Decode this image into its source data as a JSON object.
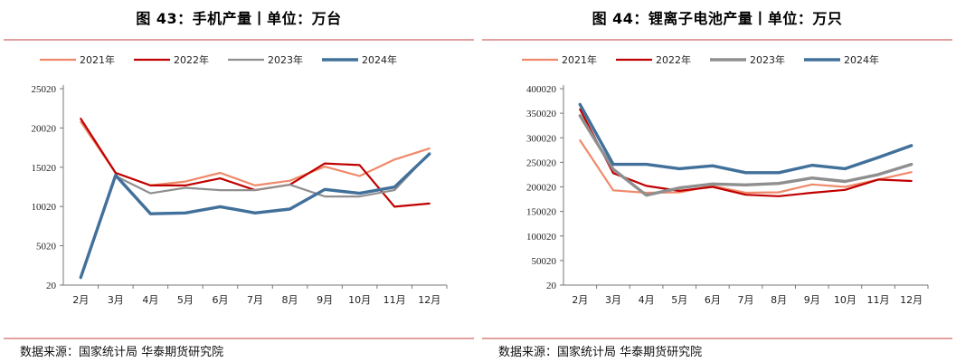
{
  "panels": [
    {
      "title": "图 43：手机产量丨单位：万台",
      "source": "数据来源：国家统计局 华泰期货研究院",
      "chart_data": {
        "type": "line",
        "title": "图 43：手机产量丨单位：万台",
        "x": [
          "2月",
          "3月",
          "4月",
          "5月",
          "6月",
          "7月",
          "8月",
          "9月",
          "10月",
          "11月",
          "12月"
        ],
        "ylim": [
          20,
          25020
        ],
        "yticks": [
          "25020",
          "20020",
          "15020",
          "10020",
          "5020",
          "20"
        ],
        "legend_position": "top",
        "series": [
          {
            "name": "2021年",
            "color": "#f0896a",
            "width": 2.2,
            "values": [
              20800,
              14300,
              12700,
              13200,
              14300,
              12700,
              13300,
              15100,
              13900,
              16000,
              17400
            ]
          },
          {
            "name": "2022年",
            "color": "#c00000",
            "width": 2.2,
            "values": [
              21200,
              14300,
              12700,
              12700,
              13600,
              12100,
              12800,
              15500,
              15300,
              10000,
              10400
            ]
          },
          {
            "name": "2023年",
            "color": "#8f8f8f",
            "width": 2.2,
            "values": [
              900,
              13900,
              11700,
              12400,
              12100,
              12100,
              12800,
              11300,
              11300,
              12100,
              16800
            ]
          },
          {
            "name": "2024年",
            "color": "#41709a",
            "width": 3.4,
            "values": [
              1000,
              14000,
              9100,
              9200,
              10000,
              9200,
              9700,
              12200,
              11700,
              12500,
              16700
            ]
          }
        ]
      }
    },
    {
      "title": "图 44：锂离子电池产量丨单位：万只",
      "source": "数据来源：国家统计局 华泰期货研究院",
      "chart_data": {
        "type": "line",
        "title": "图 44：锂离子电池产量丨单位：万只",
        "x": [
          "2月",
          "3月",
          "4月",
          "5月",
          "6月",
          "7月",
          "8月",
          "9月",
          "10月",
          "11月",
          "12月"
        ],
        "ylim": [
          20,
          400020
        ],
        "yticks": [
          "400020",
          "350020",
          "300020",
          "250020",
          "200020",
          "150020",
          "100020",
          "50020",
          "20"
        ],
        "legend_position": "top",
        "series": [
          {
            "name": "2021年",
            "color": "#f0896a",
            "width": 2.2,
            "values": [
              295000,
              193000,
              188000,
              189000,
              202000,
              188000,
              189000,
              205000,
              200000,
              215000,
              230000
            ]
          },
          {
            "name": "2022年",
            "color": "#c00000",
            "width": 2.2,
            "values": [
              358000,
              228000,
              202000,
              192000,
              200000,
              184000,
              181000,
              188000,
              194000,
              215000,
              212000
            ]
          },
          {
            "name": "2023年",
            "color": "#8f8f8f",
            "width": 3.4,
            "values": [
              345000,
              236000,
              183000,
              198000,
              206000,
              204000,
              207000,
              218000,
              211000,
              225000,
              246000
            ]
          },
          {
            "name": "2024年",
            "color": "#41709a",
            "width": 3.4,
            "values": [
              368000,
              246000,
              246000,
              237000,
              243000,
              229000,
              229000,
              244000,
              237000,
              260000,
              284000
            ]
          }
        ]
      }
    }
  ]
}
